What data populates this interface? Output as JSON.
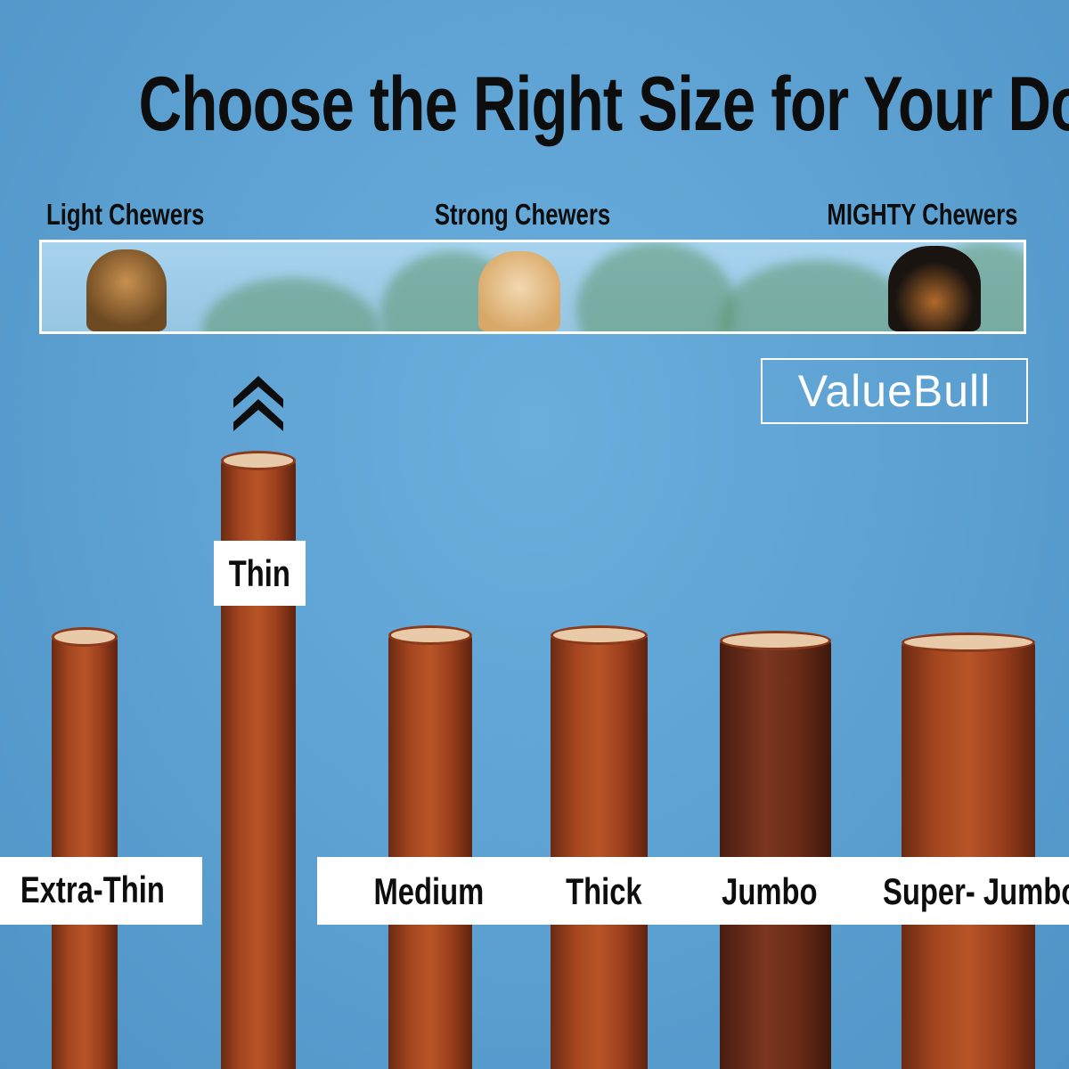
{
  "title": "Choose the Right Size for Your Dog",
  "chewer_scale": {
    "left": "Light Chewers",
    "center": "Strong Chewers",
    "right": "MIGHTY Chewers"
  },
  "brand": "ValueBull",
  "highlight_icon": "double-chevron-up-icon",
  "sizes": [
    "Extra-Thin",
    "Thin",
    "Medium",
    "Thick",
    "Jumbo",
    "Super- Jumbo"
  ],
  "colors": {
    "background": "#5fa3d3",
    "stick": "#a3451f",
    "label_bg": "#ffffff",
    "text": "#0d0d0d"
  }
}
